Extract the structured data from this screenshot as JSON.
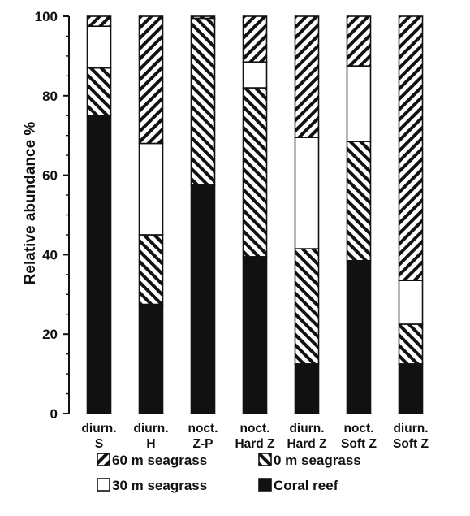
{
  "chart_data": {
    "type": "bar",
    "stacked": true,
    "ylabel": "Relative abundance %",
    "ylim": [
      0,
      100
    ],
    "yticks": [
      0,
      20,
      40,
      60,
      80,
      100
    ],
    "grid": false,
    "legend_position": "bottom",
    "categories": [
      [
        "diurn.",
        "S"
      ],
      [
        "diurn.",
        "H"
      ],
      [
        "noct.",
        "Z-P"
      ],
      [
        "noct.",
        "Hard Z"
      ],
      [
        "diurn.",
        "Hard Z"
      ],
      [
        "noct.",
        "Soft Z"
      ],
      [
        "diurn.",
        "Soft Z"
      ]
    ],
    "series": [
      {
        "name": "Coral reef",
        "pattern": "solid",
        "values": [
          75,
          27.5,
          57.5,
          39.5,
          12.5,
          38.5,
          12.5
        ]
      },
      {
        "name": "0 m seagrass",
        "pattern": "hatch-forward",
        "values": [
          12,
          17.5,
          42,
          42.5,
          29,
          30,
          10
        ]
      },
      {
        "name": "30 m seagrass",
        "pattern": "white",
        "values": [
          10.5,
          23,
          0,
          6.5,
          28,
          19,
          11
        ]
      },
      {
        "name": "60 m seagrass",
        "pattern": "hatch-backward",
        "values": [
          2.5,
          32,
          0.5,
          11.5,
          30.5,
          12.5,
          66.5
        ]
      }
    ],
    "legend_order": [
      "60 m seagrass",
      "0 m seagrass",
      "30 m seagrass",
      "Coral reef"
    ]
  }
}
